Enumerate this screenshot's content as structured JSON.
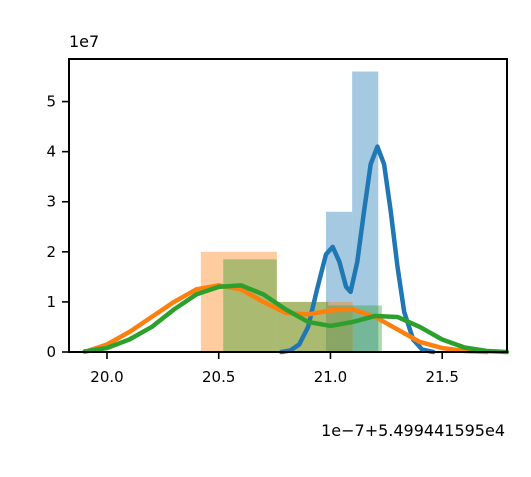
{
  "chart_data": {
    "type": "histogram",
    "title": "",
    "xlabel": "",
    "ylabel": "",
    "y_multiplier_label": "1e7",
    "x_offset_label": "1e−7+5.499441595e4",
    "xlim": [
      19.83,
      21.79
    ],
    "ylim": [
      0,
      58.5
    ],
    "x_ticks": [
      20.0,
      20.5,
      21.0,
      21.5
    ],
    "x_tick_labels": [
      "20.0",
      "20.5",
      "21.0",
      "21.5"
    ],
    "y_ticks": [
      0,
      1,
      2,
      3,
      4,
      5
    ],
    "y_tick_labels": [
      "0",
      "1",
      "2",
      "3",
      "4",
      "5"
    ],
    "grid": false,
    "legend": "none",
    "series": [
      {
        "color": "#1f77b4",
        "bar_width": 0.117,
        "bars": [
          {
            "x0": 20.98,
            "value": 0
          },
          {
            "x0": 21.097,
            "value": 2.8
          },
          {
            "x0": 21.214,
            "value": 5.6
          },
          {
            "x0": 21.331,
            "value": 0
          }
        ],
        "bar_values_scaled": [
          {
            "x0": 20.98,
            "x1": 21.097,
            "value": 28.0
          },
          {
            "x0": 21.097,
            "x1": 21.214,
            "value": 56.0
          }
        ],
        "density": [
          [
            20.78,
            0.0
          ],
          [
            20.82,
            0.3
          ],
          [
            20.86,
            1.5
          ],
          [
            20.9,
            5.0
          ],
          [
            20.94,
            12.5
          ],
          [
            20.98,
            19.5
          ],
          [
            21.01,
            21.0
          ],
          [
            21.04,
            18.0
          ],
          [
            21.07,
            13.0
          ],
          [
            21.09,
            12.0
          ],
          [
            21.12,
            18.0
          ],
          [
            21.15,
            28.0
          ],
          [
            21.18,
            37.5
          ],
          [
            21.21,
            41.0
          ],
          [
            21.24,
            37.5
          ],
          [
            21.27,
            28.0
          ],
          [
            21.3,
            17.0
          ],
          [
            21.33,
            8.0
          ],
          [
            21.37,
            2.5
          ],
          [
            21.41,
            0.5
          ],
          [
            21.46,
            0.0
          ]
        ]
      },
      {
        "color": "#ff7f0e",
        "bars_scaled": [
          {
            "x0": 20.42,
            "x1": 20.76,
            "value": 20.0
          },
          {
            "x0": 20.76,
            "x1": 21.1,
            "value": 10.0
          }
        ],
        "density": [
          [
            19.92,
            0.3
          ],
          [
            20.0,
            1.5
          ],
          [
            20.1,
            4.0
          ],
          [
            20.2,
            7.0
          ],
          [
            20.3,
            10.0
          ],
          [
            20.4,
            12.5
          ],
          [
            20.5,
            13.3
          ],
          [
            20.6,
            12.5
          ],
          [
            20.7,
            10.0
          ],
          [
            20.8,
            7.8
          ],
          [
            20.9,
            7.5
          ],
          [
            21.0,
            8.3
          ],
          [
            21.1,
            8.5
          ],
          [
            21.2,
            7.0
          ],
          [
            21.3,
            4.5
          ],
          [
            21.4,
            2.0
          ],
          [
            21.5,
            0.8
          ],
          [
            21.6,
            0.2
          ],
          [
            21.7,
            0.0
          ]
        ]
      },
      {
        "color": "#2ca02c",
        "bars_scaled": [
          {
            "x0": 20.52,
            "x1": 20.76,
            "value": 18.5
          },
          {
            "x0": 20.76,
            "x1": 20.99,
            "value": 10.0
          },
          {
            "x0": 20.99,
            "x1": 21.23,
            "value": 9.3
          }
        ],
        "density": [
          [
            19.9,
            0.1
          ],
          [
            20.0,
            0.8
          ],
          [
            20.1,
            2.5
          ],
          [
            20.2,
            5.0
          ],
          [
            20.3,
            8.5
          ],
          [
            20.4,
            11.5
          ],
          [
            20.5,
            13.0
          ],
          [
            20.6,
            13.3
          ],
          [
            20.7,
            11.5
          ],
          [
            20.8,
            8.5
          ],
          [
            20.9,
            6.0
          ],
          [
            21.0,
            5.2
          ],
          [
            21.1,
            6.0
          ],
          [
            21.2,
            7.2
          ],
          [
            21.3,
            7.0
          ],
          [
            21.4,
            5.0
          ],
          [
            21.5,
            2.5
          ],
          [
            21.6,
            0.9
          ],
          [
            21.7,
            0.2
          ],
          [
            21.79,
            0.0
          ]
        ]
      }
    ]
  }
}
